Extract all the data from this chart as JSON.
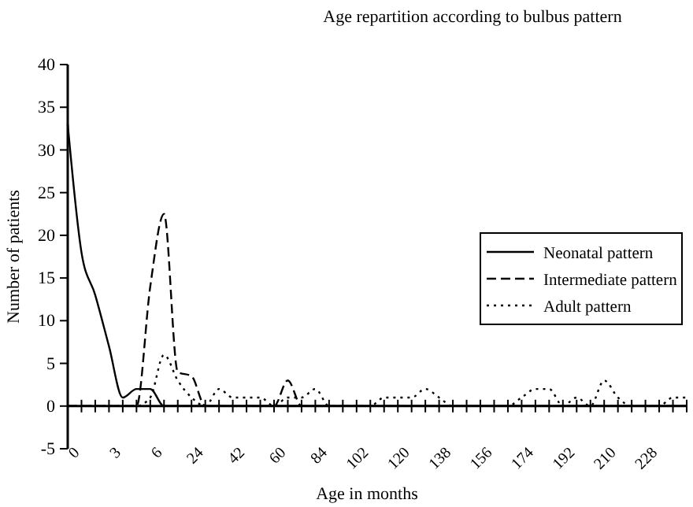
{
  "chart_data": {
    "type": "line",
    "title": "Age repartition according to bulbus pattern",
    "xlabel": "Age in months",
    "ylabel": "Number of patients",
    "categories": [
      "0",
      null,
      null,
      "3",
      null,
      null,
      "6",
      null,
      null,
      "24",
      null,
      null,
      "42",
      null,
      null,
      "60",
      null,
      null,
      "84",
      null,
      null,
      "102",
      null,
      null,
      "120",
      null,
      null,
      "138",
      null,
      null,
      "156",
      null,
      null,
      "174",
      null,
      null,
      "192",
      null,
      null,
      "210",
      null,
      null,
      "228",
      null,
      null,
      null
    ],
    "series": [
      {
        "name": "Neonatal pattern",
        "color": "#000000",
        "line_style": "solid",
        "values": [
          33,
          18,
          13,
          7,
          1,
          2,
          2,
          0,
          0,
          0,
          0,
          0,
          0,
          0,
          0,
          0,
          0,
          0,
          0,
          0,
          0,
          0,
          0,
          0,
          0,
          0,
          0,
          0,
          0,
          0,
          0,
          0,
          0,
          0,
          0,
          0,
          0,
          0,
          0,
          0,
          0,
          0,
          0,
          0,
          0,
          0
        ]
      },
      {
        "name": "Intermediate pattern",
        "color": "#000000",
        "line_style": "dashed",
        "values": [
          0,
          0,
          0,
          0,
          0,
          0,
          14,
          22.5,
          4,
          3.5,
          0,
          0,
          0,
          0,
          0,
          0,
          3,
          0,
          0,
          0,
          0,
          0,
          0,
          0,
          0,
          0,
          0,
          0,
          0,
          0,
          0,
          0,
          0,
          0,
          0,
          0,
          0,
          0,
          0,
          0,
          0,
          0,
          0,
          0,
          0,
          0
        ]
      },
      {
        "name": "Adult pattern",
        "color": "#000000",
        "line_style": "dotted",
        "values": [
          0,
          0,
          0,
          0,
          0,
          0,
          1,
          6,
          3,
          1,
          0,
          2,
          1,
          1,
          1,
          0,
          1,
          1,
          2,
          0,
          0,
          0,
          0,
          1,
          1,
          1,
          2,
          1,
          0,
          0,
          0,
          0,
          0,
          1,
          2,
          2,
          0,
          1,
          0,
          3,
          1,
          0,
          0,
          0,
          1,
          1
        ]
      }
    ],
    "ylim": [
      -5,
      40
    ],
    "yticks": [
      -5,
      0,
      5,
      10,
      15,
      20,
      25,
      30,
      35,
      40
    ],
    "grid": false,
    "legend": "right"
  }
}
